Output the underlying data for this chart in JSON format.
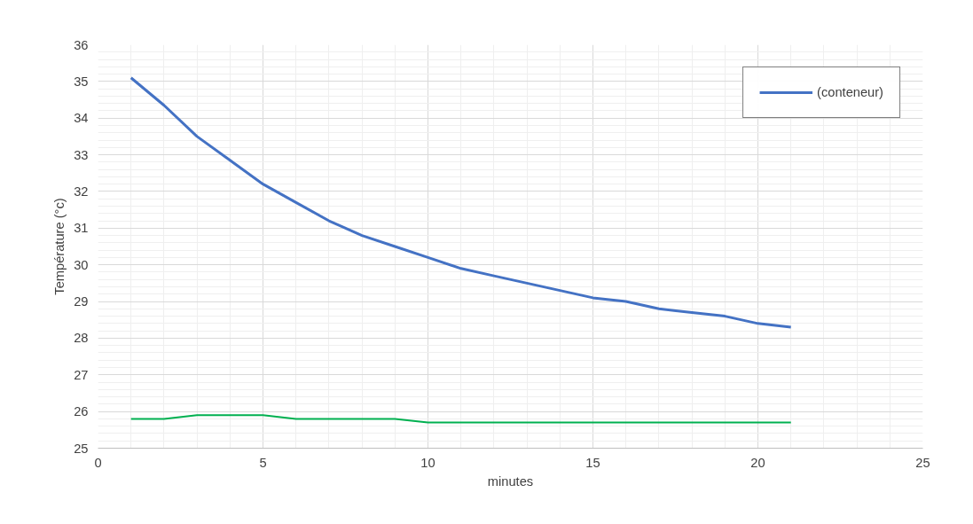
{
  "chart_data": {
    "type": "line",
    "xlabel": "minutes",
    "ylabel": "Température (°c)",
    "x": [
      1,
      2,
      3,
      4,
      5,
      6,
      7,
      8,
      9,
      10,
      11,
      12,
      13,
      14,
      15,
      16,
      17,
      18,
      19,
      20,
      21
    ],
    "series": [
      {
        "name": "(conteneur)",
        "color": "#4472c4",
        "values": [
          35.1,
          34.35,
          33.5,
          32.85,
          32.2,
          31.7,
          31.2,
          30.8,
          30.5,
          30.2,
          29.9,
          29.7,
          29.5,
          29.3,
          29.1,
          29.0,
          28.8,
          28.7,
          28.6,
          28.4,
          28.3
        ]
      },
      {
        "color": "#00b050",
        "values": [
          25.8,
          25.8,
          25.9,
          25.9,
          25.9,
          25.8,
          25.8,
          25.8,
          25.8,
          25.7,
          25.7,
          25.7,
          25.7,
          25.7,
          25.7,
          25.7,
          25.7,
          25.7,
          25.7,
          25.7,
          25.7
        ]
      }
    ],
    "xlim": [
      0,
      25
    ],
    "xticks": [
      0,
      5,
      10,
      15,
      20,
      25
    ],
    "ylim": [
      25,
      36
    ],
    "yticks": [
      25,
      26,
      27,
      28,
      29,
      30,
      31,
      32,
      33,
      34,
      35,
      36
    ],
    "grid": true,
    "legend": "top right",
    "marker": "none",
    "line_style": "solid"
  }
}
